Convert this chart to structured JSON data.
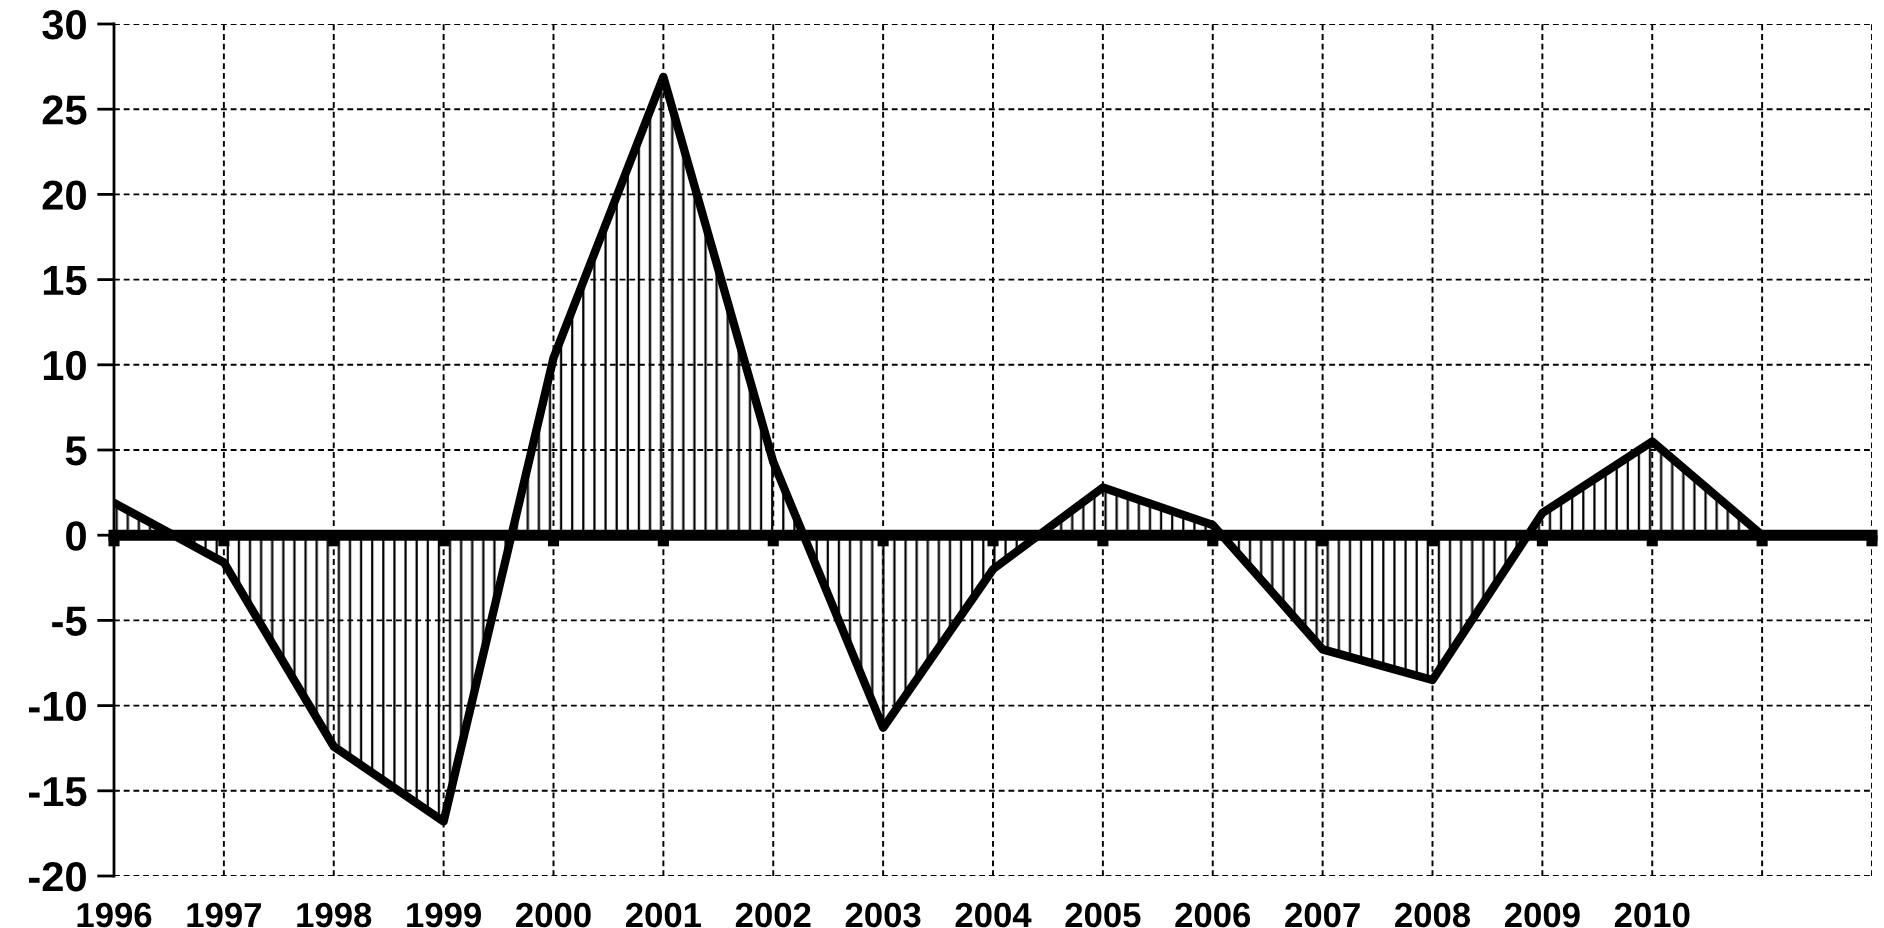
{
  "chart_data": {
    "type": "area",
    "x": [
      1996,
      1997,
      1998,
      1999,
      2000,
      2001,
      2002,
      2003,
      2004,
      2005,
      2006,
      2007,
      2008,
      2009,
      2010,
      2011
    ],
    "series": [
      {
        "color": "#000000",
        "values": [
          1.9,
          -1.6,
          -12.4,
          -16.8,
          10.4,
          26.9,
          4.3,
          -11.3,
          -2.0,
          2.8,
          0.6,
          -6.7,
          -8.5,
          1.3,
          5.5,
          0
        ]
      }
    ],
    "xlim": [
      1996,
      2012
    ],
    "xticks": [
      1996,
      1997,
      1998,
      1999,
      2000,
      2001,
      2002,
      2003,
      2004,
      2005,
      2006,
      2007,
      2008,
      2009,
      2010,
      {
        "value": 2011,
        "label": null
      },
      {
        "value": 2012,
        "label": null
      }
    ],
    "ylim": [
      -20,
      30
    ],
    "yticks": [
      -20,
      -15,
      -10,
      -5,
      0,
      5,
      10,
      15,
      20,
      25,
      30
    ],
    "grid": true,
    "line_style": "solid",
    "marker": "none"
  }
}
